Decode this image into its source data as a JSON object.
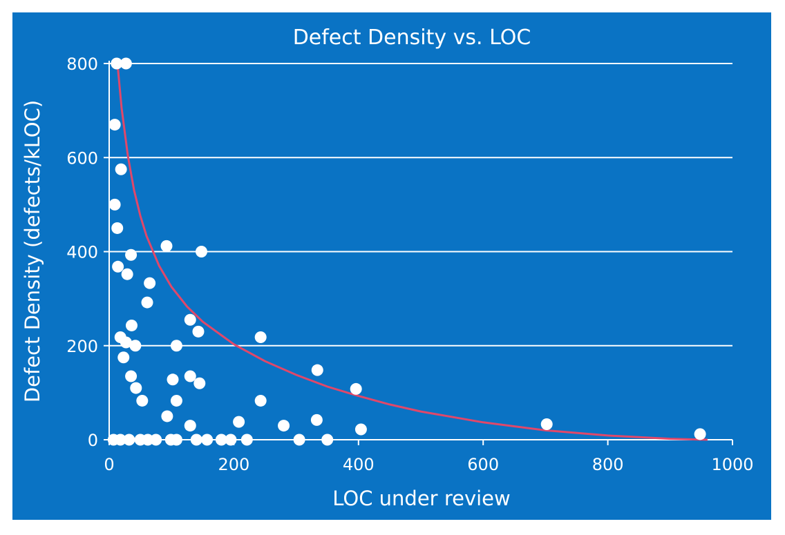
{
  "chart_data": {
    "type": "scatter",
    "title": "Defect Density vs. LOC",
    "xlabel": "LOC under review",
    "ylabel": "Defect Density (defects/kLOC)",
    "xlim": [
      0,
      1000
    ],
    "ylim": [
      0,
      800
    ],
    "x_ticks": [
      0,
      200,
      400,
      600,
      800,
      1000
    ],
    "y_ticks": [
      0,
      200,
      400,
      600,
      800
    ],
    "grid": "horizontal",
    "legend": "none",
    "colors": {
      "background": "#0a73c4",
      "points": "#ffffff",
      "trend": "#e0486a",
      "grid": "#ffffff"
    },
    "points": [
      {
        "x": 12,
        "y": 800
      },
      {
        "x": 27,
        "y": 800
      },
      {
        "x": 9,
        "y": 670
      },
      {
        "x": 19,
        "y": 575
      },
      {
        "x": 9,
        "y": 500
      },
      {
        "x": 13,
        "y": 450
      },
      {
        "x": 14,
        "y": 368
      },
      {
        "x": 35,
        "y": 393
      },
      {
        "x": 29,
        "y": 352
      },
      {
        "x": 92,
        "y": 412
      },
      {
        "x": 148,
        "y": 400
      },
      {
        "x": 65,
        "y": 333
      },
      {
        "x": 61,
        "y": 292
      },
      {
        "x": 36,
        "y": 243
      },
      {
        "x": 18,
        "y": 218
      },
      {
        "x": 27,
        "y": 207
      },
      {
        "x": 42,
        "y": 200
      },
      {
        "x": 23,
        "y": 175
      },
      {
        "x": 108,
        "y": 200
      },
      {
        "x": 130,
        "y": 255
      },
      {
        "x": 143,
        "y": 230
      },
      {
        "x": 35,
        "y": 135
      },
      {
        "x": 43,
        "y": 110
      },
      {
        "x": 53,
        "y": 83
      },
      {
        "x": 102,
        "y": 128
      },
      {
        "x": 130,
        "y": 135
      },
      {
        "x": 145,
        "y": 120
      },
      {
        "x": 108,
        "y": 83
      },
      {
        "x": 93,
        "y": 50
      },
      {
        "x": 130,
        "y": 30
      },
      {
        "x": 243,
        "y": 218
      },
      {
        "x": 243,
        "y": 83
      },
      {
        "x": 208,
        "y": 38
      },
      {
        "x": 334,
        "y": 148
      },
      {
        "x": 333,
        "y": 42
      },
      {
        "x": 280,
        "y": 30
      },
      {
        "x": 396,
        "y": 108
      },
      {
        "x": 404,
        "y": 22
      },
      {
        "x": 702,
        "y": 33
      },
      {
        "x": 948,
        "y": 12
      },
      {
        "x": 7,
        "y": 0
      },
      {
        "x": 18,
        "y": 0
      },
      {
        "x": 32,
        "y": 0
      },
      {
        "x": 50,
        "y": 0
      },
      {
        "x": 62,
        "y": 0
      },
      {
        "x": 75,
        "y": 0
      },
      {
        "x": 99,
        "y": 0
      },
      {
        "x": 108,
        "y": 0
      },
      {
        "x": 140,
        "y": 0
      },
      {
        "x": 157,
        "y": 0
      },
      {
        "x": 180,
        "y": 0
      },
      {
        "x": 195,
        "y": 0
      },
      {
        "x": 221,
        "y": 0
      },
      {
        "x": 305,
        "y": 0
      },
      {
        "x": 350,
        "y": 0
      }
    ],
    "trendline": {
      "type": "fitted curve",
      "x": [
        14,
        20,
        30,
        40,
        50,
        60,
        80,
        100,
        125,
        150,
        200,
        250,
        300,
        350,
        400,
        450,
        500,
        600,
        700,
        800,
        900,
        960
      ],
      "y": [
        790,
        705,
        603,
        530,
        476,
        433,
        370,
        325,
        283,
        251,
        203,
        167,
        138,
        113,
        93,
        75,
        60,
        37,
        20,
        9,
        2,
        0
      ]
    }
  }
}
